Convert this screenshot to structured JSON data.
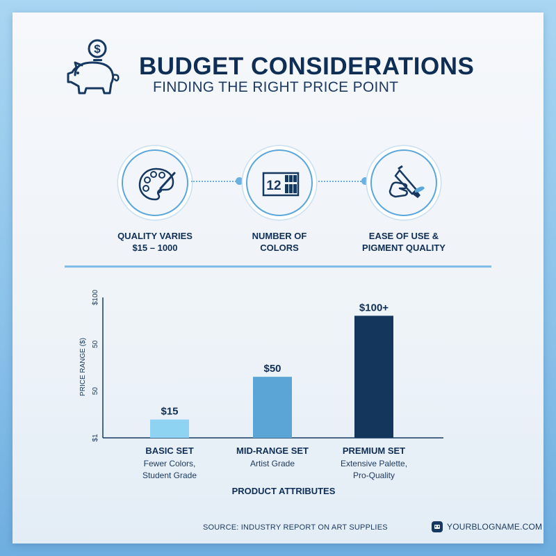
{
  "header": {
    "title": "BUDGET CONSIDERATIONS",
    "subtitle": "FINDING THE RIGHT PRICE POINT"
  },
  "features": [
    {
      "label": "QUALITY VARIES\n$15 – 1000",
      "icon": "paint-palette-icon"
    },
    {
      "label": "NUMBER OF\nCOLORS",
      "icon": "color-count-box-icon",
      "badge": "12"
    },
    {
      "label": "EASE OF USE &\nPIGMENT QUALITY",
      "icon": "paint-tube-hand-icon"
    }
  ],
  "chart_data": {
    "type": "bar",
    "categories": [
      "BASIC SET",
      "MID-RANGE SET",
      "PREMIUM SET"
    ],
    "category_descriptions": [
      "Fewer Colors,\nStudent Grade",
      "Artist Grade",
      "Extensive Palette,\nPro-Quality"
    ],
    "values": [
      15,
      50,
      100
    ],
    "data_labels": [
      "$15",
      "$50",
      "$100+"
    ],
    "bar_colors": [
      "#8ed3f2",
      "#5ba5d6",
      "#14365d"
    ],
    "ylabel": "PRICE RANGE ($)",
    "xlabel": "PRODUCT ATTRIBUTES",
    "y_tick_labels": [
      "$1",
      "50",
      "50",
      "$100"
    ],
    "ylim": [
      0,
      115
    ],
    "grid": false
  },
  "footer": {
    "source": "SOURCE: INDUSTRY REPORT ON ART SUPPLIES",
    "brand": "YOURBLOGNAME.COM"
  },
  "colors": {
    "navy": "#0f2e55",
    "accent": "#5aa6db",
    "light_blue": "#8ed3f2"
  }
}
